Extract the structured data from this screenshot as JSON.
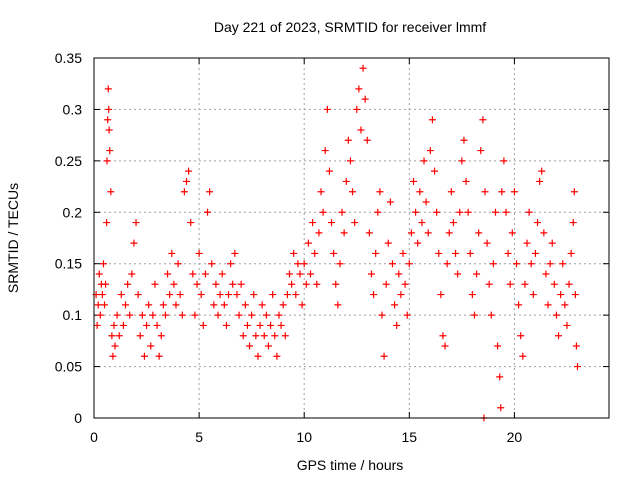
{
  "chart_data": {
    "type": "scatter",
    "title": "Day 221 of 2023, SRMTID for receiver lmmf",
    "xlabel": "GPS time / hours",
    "ylabel": "SRMTID / TECUs",
    "xlim": [
      0,
      24.5
    ],
    "ylim": [
      0,
      0.35
    ],
    "xticks": [
      0,
      5,
      10,
      15,
      20
    ],
    "xtick_labels": [
      "0",
      "5",
      "10",
      "15",
      "20"
    ],
    "yticks": [
      0,
      0.05,
      0.1,
      0.15,
      0.2,
      0.25,
      0.3,
      0.35
    ],
    "ytick_labels": [
      "0",
      "0.05",
      "0.1",
      "0.15",
      "0.2",
      "0.25",
      "0.3",
      "0.35"
    ],
    "grid": true,
    "marker": "plus",
    "series_color": "#ff0000",
    "series": [
      {
        "name": "SRMTID",
        "points": [
          [
            0.1,
            0.12
          ],
          [
            0.15,
            0.09
          ],
          [
            0.2,
            0.11
          ],
          [
            0.25,
            0.14
          ],
          [
            0.3,
            0.1
          ],
          [
            0.35,
            0.13
          ],
          [
            0.4,
            0.12
          ],
          [
            0.45,
            0.15
          ],
          [
            0.5,
            0.11
          ],
          [
            0.55,
            0.13
          ],
          [
            0.6,
            0.19
          ],
          [
            0.62,
            0.25
          ],
          [
            0.65,
            0.29
          ],
          [
            0.68,
            0.32
          ],
          [
            0.7,
            0.3
          ],
          [
            0.72,
            0.28
          ],
          [
            0.75,
            0.26
          ],
          [
            0.8,
            0.22
          ],
          [
            0.85,
            0.08
          ],
          [
            0.9,
            0.06
          ],
          [
            0.95,
            0.09
          ],
          [
            1.0,
            0.07
          ],
          [
            1.1,
            0.1
          ],
          [
            1.2,
            0.08
          ],
          [
            1.3,
            0.12
          ],
          [
            1.4,
            0.09
          ],
          [
            1.5,
            0.11
          ],
          [
            1.6,
            0.13
          ],
          [
            1.7,
            0.1
          ],
          [
            1.8,
            0.14
          ],
          [
            1.9,
            0.17
          ],
          [
            2.0,
            0.19
          ],
          [
            2.1,
            0.12
          ],
          [
            2.2,
            0.08
          ],
          [
            2.3,
            0.1
          ],
          [
            2.4,
            0.06
          ],
          [
            2.5,
            0.09
          ],
          [
            2.6,
            0.11
          ],
          [
            2.7,
            0.07
          ],
          [
            2.8,
            0.1
          ],
          [
            2.9,
            0.13
          ],
          [
            3.0,
            0.09
          ],
          [
            3.1,
            0.06
          ],
          [
            3.2,
            0.08
          ],
          [
            3.3,
            0.11
          ],
          [
            3.4,
            0.1
          ],
          [
            3.5,
            0.14
          ],
          [
            3.6,
            0.12
          ],
          [
            3.7,
            0.16
          ],
          [
            3.8,
            0.13
          ],
          [
            3.9,
            0.11
          ],
          [
            4.0,
            0.15
          ],
          [
            4.1,
            0.12
          ],
          [
            4.2,
            0.1
          ],
          [
            4.3,
            0.22
          ],
          [
            4.4,
            0.23
          ],
          [
            4.5,
            0.24
          ],
          [
            4.6,
            0.19
          ],
          [
            4.7,
            0.14
          ],
          [
            4.8,
            0.1
          ],
          [
            4.9,
            0.13
          ],
          [
            5.0,
            0.16
          ],
          [
            5.1,
            0.12
          ],
          [
            5.2,
            0.09
          ],
          [
            5.3,
            0.14
          ],
          [
            5.4,
            0.2
          ],
          [
            5.5,
            0.22
          ],
          [
            5.6,
            0.15
          ],
          [
            5.7,
            0.11
          ],
          [
            5.8,
            0.13
          ],
          [
            5.9,
            0.1
          ],
          [
            6.0,
            0.12
          ],
          [
            6.1,
            0.14
          ],
          [
            6.2,
            0.11
          ],
          [
            6.3,
            0.09
          ],
          [
            6.4,
            0.12
          ],
          [
            6.5,
            0.15
          ],
          [
            6.6,
            0.13
          ],
          [
            6.7,
            0.16
          ],
          [
            6.8,
            0.12
          ],
          [
            6.9,
            0.1
          ],
          [
            7.0,
            0.13
          ],
          [
            7.1,
            0.08
          ],
          [
            7.2,
            0.11
          ],
          [
            7.3,
            0.09
          ],
          [
            7.4,
            0.07
          ],
          [
            7.5,
            0.1
          ],
          [
            7.6,
            0.12
          ],
          [
            7.7,
            0.08
          ],
          [
            7.8,
            0.06
          ],
          [
            7.9,
            0.09
          ],
          [
            8.0,
            0.11
          ],
          [
            8.1,
            0.08
          ],
          [
            8.2,
            0.1
          ],
          [
            8.3,
            0.07
          ],
          [
            8.4,
            0.09
          ],
          [
            8.5,
            0.12
          ],
          [
            8.6,
            0.08
          ],
          [
            8.7,
            0.06
          ],
          [
            8.8,
            0.1
          ],
          [
            8.9,
            0.09
          ],
          [
            9.0,
            0.11
          ],
          [
            9.1,
            0.08
          ],
          [
            9.2,
            0.12
          ],
          [
            9.3,
            0.14
          ],
          [
            9.4,
            0.13
          ],
          [
            9.5,
            0.16
          ],
          [
            9.6,
            0.12
          ],
          [
            9.7,
            0.15
          ],
          [
            9.8,
            0.14
          ],
          [
            9.9,
            0.11
          ],
          [
            10.0,
            0.15
          ],
          [
            10.1,
            0.13
          ],
          [
            10.2,
            0.17
          ],
          [
            10.3,
            0.14
          ],
          [
            10.4,
            0.19
          ],
          [
            10.5,
            0.16
          ],
          [
            10.6,
            0.13
          ],
          [
            10.7,
            0.18
          ],
          [
            10.8,
            0.22
          ],
          [
            10.9,
            0.2
          ],
          [
            11.0,
            0.26
          ],
          [
            11.1,
            0.3
          ],
          [
            11.2,
            0.24
          ],
          [
            11.3,
            0.19
          ],
          [
            11.4,
            0.16
          ],
          [
            11.5,
            0.13
          ],
          [
            11.6,
            0.11
          ],
          [
            11.7,
            0.15
          ],
          [
            11.8,
            0.2
          ],
          [
            11.9,
            0.18
          ],
          [
            12.0,
            0.23
          ],
          [
            12.1,
            0.27
          ],
          [
            12.2,
            0.25
          ],
          [
            12.3,
            0.22
          ],
          [
            12.4,
            0.19
          ],
          [
            12.5,
            0.3
          ],
          [
            12.6,
            0.32
          ],
          [
            12.7,
            0.28
          ],
          [
            12.8,
            0.34
          ],
          [
            12.9,
            0.31
          ],
          [
            13.0,
            0.27
          ],
          [
            13.1,
            0.18
          ],
          [
            13.2,
            0.14
          ],
          [
            13.3,
            0.12
          ],
          [
            13.4,
            0.16
          ],
          [
            13.5,
            0.2
          ],
          [
            13.6,
            0.22
          ],
          [
            13.7,
            0.1
          ],
          [
            13.8,
            0.06
          ],
          [
            13.9,
            0.13
          ],
          [
            14.0,
            0.17
          ],
          [
            14.1,
            0.21
          ],
          [
            14.2,
            0.15
          ],
          [
            14.3,
            0.11
          ],
          [
            14.4,
            0.09
          ],
          [
            14.5,
            0.14
          ],
          [
            14.6,
            0.12
          ],
          [
            14.7,
            0.16
          ],
          [
            14.8,
            0.13
          ],
          [
            14.9,
            0.1
          ],
          [
            15.0,
            0.15
          ],
          [
            15.1,
            0.18
          ],
          [
            15.2,
            0.23
          ],
          [
            15.3,
            0.2
          ],
          [
            15.4,
            0.17
          ],
          [
            15.5,
            0.22
          ],
          [
            15.6,
            0.19
          ],
          [
            15.7,
            0.25
          ],
          [
            15.8,
            0.21
          ],
          [
            15.9,
            0.18
          ],
          [
            16.0,
            0.26
          ],
          [
            16.1,
            0.29
          ],
          [
            16.2,
            0.24
          ],
          [
            16.3,
            0.2
          ],
          [
            16.4,
            0.16
          ],
          [
            16.5,
            0.12
          ],
          [
            16.6,
            0.08
          ],
          [
            16.7,
            0.07
          ],
          [
            16.8,
            0.15
          ],
          [
            16.9,
            0.18
          ],
          [
            17.0,
            0.22
          ],
          [
            17.1,
            0.19
          ],
          [
            17.2,
            0.16
          ],
          [
            17.3,
            0.14
          ],
          [
            17.4,
            0.2
          ],
          [
            17.5,
            0.25
          ],
          [
            17.6,
            0.27
          ],
          [
            17.7,
            0.23
          ],
          [
            17.8,
            0.2
          ],
          [
            17.9,
            0.16
          ],
          [
            18.0,
            0.12
          ],
          [
            18.1,
            0.1
          ],
          [
            18.2,
            0.14
          ],
          [
            18.3,
            0.18
          ],
          [
            18.4,
            0.26
          ],
          [
            18.5,
            0.29
          ],
          [
            18.55,
            0.0
          ],
          [
            18.6,
            0.22
          ],
          [
            18.7,
            0.17
          ],
          [
            18.8,
            0.13
          ],
          [
            18.9,
            0.1
          ],
          [
            19.0,
            0.15
          ],
          [
            19.1,
            0.2
          ],
          [
            19.2,
            0.07
          ],
          [
            19.3,
            0.04
          ],
          [
            19.35,
            0.01
          ],
          [
            19.4,
            0.22
          ],
          [
            19.5,
            0.25
          ],
          [
            19.6,
            0.2
          ],
          [
            19.7,
            0.16
          ],
          [
            19.8,
            0.13
          ],
          [
            19.9,
            0.18
          ],
          [
            20.0,
            0.22
          ],
          [
            20.1,
            0.15
          ],
          [
            20.2,
            0.11
          ],
          [
            20.3,
            0.08
          ],
          [
            20.4,
            0.06
          ],
          [
            20.5,
            0.13
          ],
          [
            20.6,
            0.17
          ],
          [
            20.7,
            0.2
          ],
          [
            20.8,
            0.15
          ],
          [
            20.9,
            0.12
          ],
          [
            21.0,
            0.16
          ],
          [
            21.1,
            0.19
          ],
          [
            21.2,
            0.23
          ],
          [
            21.3,
            0.24
          ],
          [
            21.4,
            0.18
          ],
          [
            21.5,
            0.14
          ],
          [
            21.6,
            0.11
          ],
          [
            21.7,
            0.15
          ],
          [
            21.8,
            0.17
          ],
          [
            21.9,
            0.13
          ],
          [
            22.0,
            0.1
          ],
          [
            22.1,
            0.08
          ],
          [
            22.2,
            0.12
          ],
          [
            22.3,
            0.15
          ],
          [
            22.4,
            0.11
          ],
          [
            22.5,
            0.09
          ],
          [
            22.6,
            0.13
          ],
          [
            22.7,
            0.16
          ],
          [
            22.8,
            0.19
          ],
          [
            22.85,
            0.22
          ],
          [
            22.9,
            0.12
          ],
          [
            22.95,
            0.07
          ],
          [
            23.0,
            0.05
          ]
        ]
      }
    ]
  }
}
